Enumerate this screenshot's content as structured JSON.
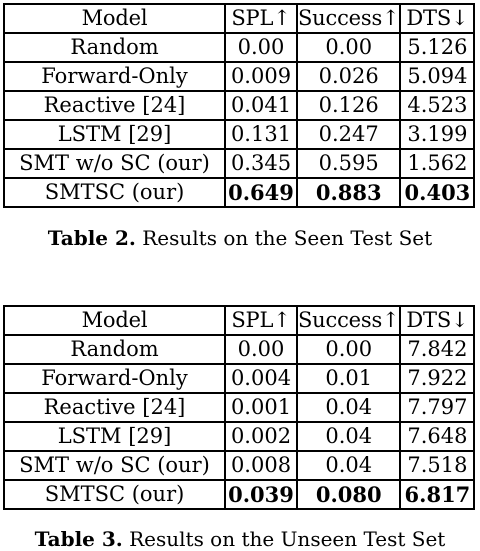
{
  "table2": {
    "headers": [
      "Model",
      "SPL↑",
      "Success↑",
      "DTS↓"
    ],
    "rows": [
      [
        "Random",
        "0.00",
        "0.00",
        "5.126"
      ],
      [
        "Forward-Only",
        "0.009",
        "0.026",
        "5.094"
      ],
      [
        "Reactive [24]",
        "0.041",
        "0.126",
        "4.523"
      ],
      [
        "LSTM [29]",
        "0.131",
        "0.247",
        "3.199"
      ],
      [
        "SMT w/o SC (our)",
        "0.345",
        "0.595",
        "1.562"
      ],
      [
        "SMTSC (our)",
        "0.649",
        "0.883",
        "0.403"
      ]
    ],
    "caption_label": "Table 2.",
    "caption_text": " Results on the Seen Test Set"
  },
  "table3": {
    "headers": [
      "Model",
      "SPL↑",
      "Success↑",
      "DTS↓"
    ],
    "rows": [
      [
        "Random",
        "0.00",
        "0.00",
        "7.842"
      ],
      [
        "Forward-Only",
        "0.004",
        "0.01",
        "7.922"
      ],
      [
        "Reactive [24]",
        "0.001",
        "0.04",
        "7.797"
      ],
      [
        "LSTM [29]",
        "0.002",
        "0.04",
        "7.648"
      ],
      [
        "SMT w/o SC (our)",
        "0.008",
        "0.04",
        "7.518"
      ],
      [
        "SMTSC (our)",
        "0.039",
        "0.080",
        "6.817"
      ]
    ],
    "caption_label": "Table 3.",
    "caption_text": " Results on the Unseen Test Set"
  }
}
